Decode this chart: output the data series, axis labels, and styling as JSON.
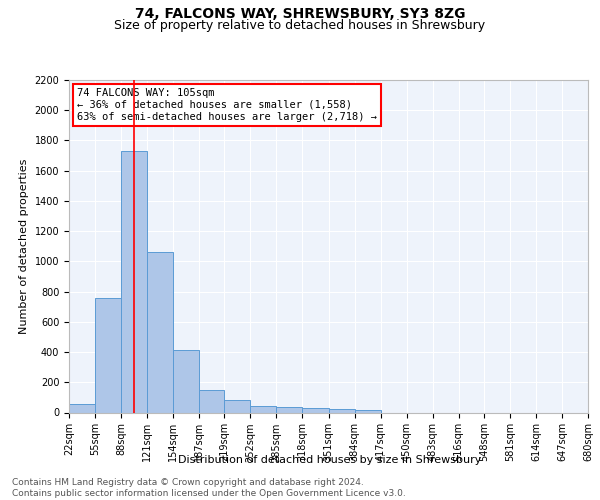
{
  "title": "74, FALCONS WAY, SHREWSBURY, SY3 8ZG",
  "subtitle": "Size of property relative to detached houses in Shrewsbury",
  "xlabel": "Distribution of detached houses by size in Shrewsbury",
  "ylabel": "Number of detached properties",
  "footer_line1": "Contains HM Land Registry data © Crown copyright and database right 2024.",
  "footer_line2": "Contains public sector information licensed under the Open Government Licence v3.0.",
  "annotation_line1": "74 FALCONS WAY: 105sqm",
  "annotation_line2": "← 36% of detached houses are smaller (1,558)",
  "annotation_line3": "63% of semi-detached houses are larger (2,718) →",
  "bar_color": "#aec6e8",
  "bar_edge_color": "#5b9bd5",
  "redline_x": 105,
  "categories": [
    "22sqm",
    "55sqm",
    "88sqm",
    "121sqm",
    "154sqm",
    "187sqm",
    "219sqm",
    "252sqm",
    "285sqm",
    "318sqm",
    "351sqm",
    "384sqm",
    "417sqm",
    "450sqm",
    "483sqm",
    "516sqm",
    "548sqm",
    "581sqm",
    "614sqm",
    "647sqm",
    "680sqm"
  ],
  "bin_edges": [
    22,
    55,
    88,
    121,
    154,
    187,
    219,
    252,
    285,
    318,
    351,
    384,
    417,
    450,
    483,
    516,
    548,
    581,
    614,
    647,
    680
  ],
  "values": [
    55,
    760,
    1730,
    1060,
    415,
    148,
    82,
    45,
    37,
    30,
    20,
    18,
    0,
    0,
    0,
    0,
    0,
    0,
    0,
    0
  ],
  "ylim": [
    0,
    2200
  ],
  "yticks": [
    0,
    200,
    400,
    600,
    800,
    1000,
    1200,
    1400,
    1600,
    1800,
    2000,
    2200
  ],
  "background_color": "#eef3fb",
  "grid_color": "#ffffff",
  "title_fontsize": 10,
  "subtitle_fontsize": 9,
  "axis_fontsize": 8,
  "tick_fontsize": 7,
  "footer_fontsize": 6.5,
  "annotation_fontsize": 7.5
}
